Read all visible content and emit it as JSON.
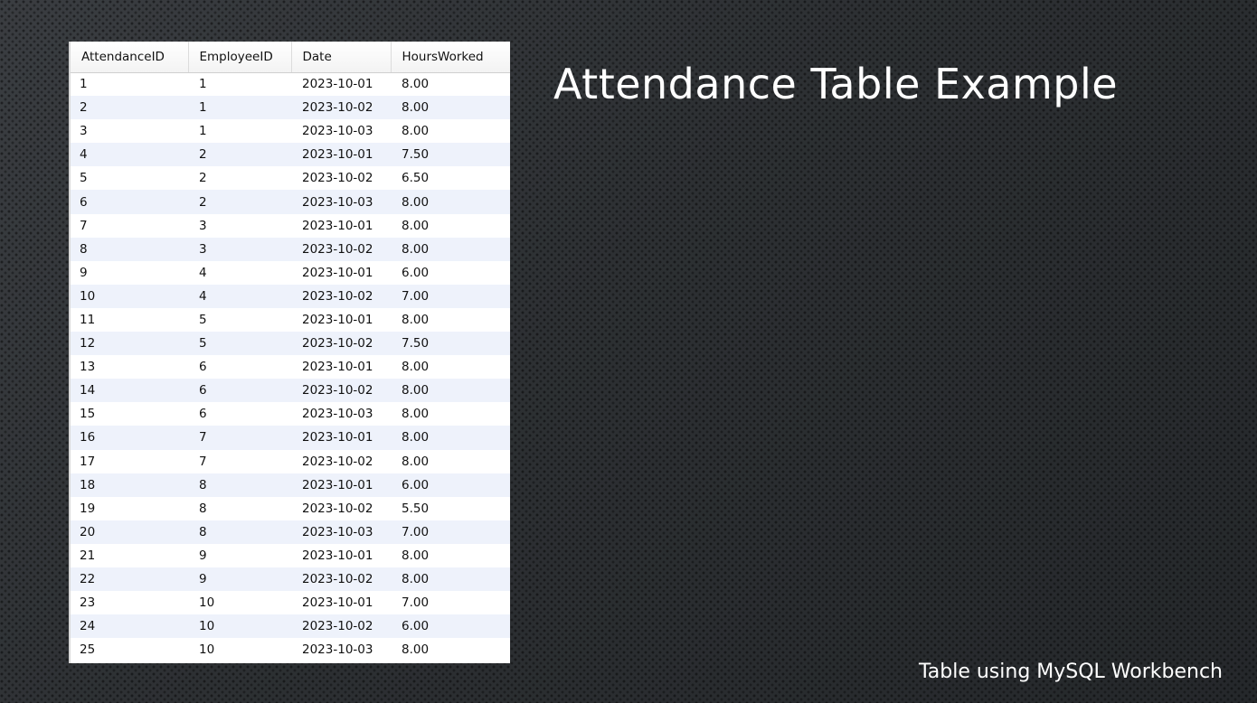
{
  "title": "Attendance Table Example",
  "caption": "Table using MySQL Workbench",
  "table": {
    "columns": [
      "AttendanceID",
      "EmployeeID",
      "Date",
      "HoursWorked"
    ],
    "rows": [
      [
        "1",
        "1",
        "2023-10-01",
        "8.00"
      ],
      [
        "2",
        "1",
        "2023-10-02",
        "8.00"
      ],
      [
        "3",
        "1",
        "2023-10-03",
        "8.00"
      ],
      [
        "4",
        "2",
        "2023-10-01",
        "7.50"
      ],
      [
        "5",
        "2",
        "2023-10-02",
        "6.50"
      ],
      [
        "6",
        "2",
        "2023-10-03",
        "8.00"
      ],
      [
        "7",
        "3",
        "2023-10-01",
        "8.00"
      ],
      [
        "8",
        "3",
        "2023-10-02",
        "8.00"
      ],
      [
        "9",
        "4",
        "2023-10-01",
        "6.00"
      ],
      [
        "10",
        "4",
        "2023-10-02",
        "7.00"
      ],
      [
        "11",
        "5",
        "2023-10-01",
        "8.00"
      ],
      [
        "12",
        "5",
        "2023-10-02",
        "7.50"
      ],
      [
        "13",
        "6",
        "2023-10-01",
        "8.00"
      ],
      [
        "14",
        "6",
        "2023-10-02",
        "8.00"
      ],
      [
        "15",
        "6",
        "2023-10-03",
        "8.00"
      ],
      [
        "16",
        "7",
        "2023-10-01",
        "8.00"
      ],
      [
        "17",
        "7",
        "2023-10-02",
        "8.00"
      ],
      [
        "18",
        "8",
        "2023-10-01",
        "6.00"
      ],
      [
        "19",
        "8",
        "2023-10-02",
        "5.50"
      ],
      [
        "20",
        "8",
        "2023-10-03",
        "7.00"
      ],
      [
        "21",
        "9",
        "2023-10-01",
        "8.00"
      ],
      [
        "22",
        "9",
        "2023-10-02",
        "8.00"
      ],
      [
        "23",
        "10",
        "2023-10-01",
        "7.00"
      ],
      [
        "24",
        "10",
        "2023-10-02",
        "6.00"
      ],
      [
        "25",
        "10",
        "2023-10-03",
        "8.00"
      ]
    ]
  },
  "colors": {
    "background": "#2b2e31",
    "grid_background": "#ffffff",
    "alt_row": "#eef2fb",
    "text_light": "#ffffff"
  }
}
